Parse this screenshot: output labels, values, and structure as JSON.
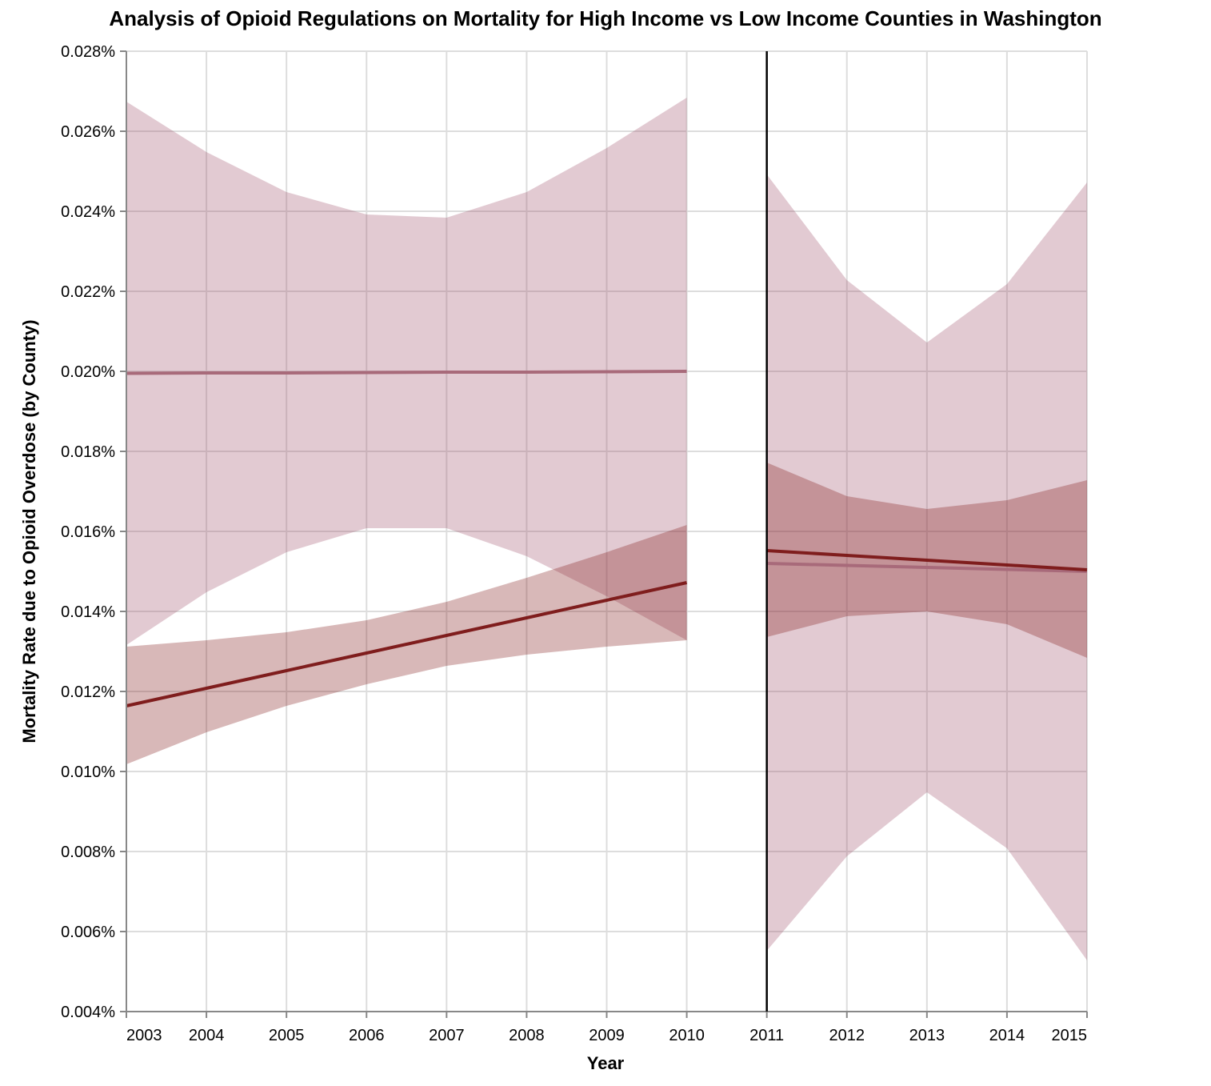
{
  "chart_data": {
    "type": "line-band",
    "title": "Analysis of Opioid Regulations on Mortality for High Income vs Low Income Counties in Washington",
    "x_label": "Year",
    "y_label": "Mortality Rate due to Opioid Overdose (by County)",
    "xlim": [
      2003,
      2015
    ],
    "xticks": [
      2003,
      2004,
      2005,
      2006,
      2007,
      2008,
      2009,
      2010,
      2011,
      2012,
      2013,
      2014,
      2015
    ],
    "ylim": [
      0.004,
      0.028
    ],
    "yticks": [
      {
        "value": 0.004,
        "label": "0.004%"
      },
      {
        "value": 0.006,
        "label": "0.006%"
      },
      {
        "value": 0.008,
        "label": "0.008%"
      },
      {
        "value": 0.01,
        "label": "0.010%"
      },
      {
        "value": 0.012,
        "label": "0.012%"
      },
      {
        "value": 0.014,
        "label": "0.014%"
      },
      {
        "value": 0.016,
        "label": "0.016%"
      },
      {
        "value": 0.018,
        "label": "0.018%"
      },
      {
        "value": 0.02,
        "label": "0.020%"
      },
      {
        "value": 0.022,
        "label": "0.022%"
      },
      {
        "value": 0.024,
        "label": "0.024%"
      },
      {
        "value": 0.026,
        "label": "0.026%"
      },
      {
        "value": 0.028,
        "label": "0.028%"
      }
    ],
    "grid": true,
    "rule_x": 2011,
    "band_opacity": 0.3,
    "series": [
      {
        "color": "#a86a7a",
        "band_color": "#a0506a",
        "x": [
          2003,
          2004,
          2005,
          2006,
          2007,
          2008,
          2009,
          2010
        ],
        "values": [
          0.01995,
          0.01996,
          0.01996,
          0.01997,
          0.01998,
          0.01998,
          0.01999,
          0.02
        ],
        "upper": [
          0.02674,
          0.02548,
          0.02448,
          0.02392,
          0.02384,
          0.02448,
          0.02558,
          0.02684
        ],
        "lower": [
          0.01316,
          0.01448,
          0.01548,
          0.01608,
          0.01608,
          0.01538,
          0.01438,
          0.01328
        ]
      },
      {
        "color": "#7f1d1d",
        "band_color": "#7d1414",
        "x": [
          2003,
          2004,
          2005,
          2006,
          2007,
          2008,
          2009,
          2010
        ],
        "values": [
          0.01164,
          0.01208,
          0.01252,
          0.01296,
          0.0134,
          0.01384,
          0.01428,
          0.01472
        ],
        "upper": [
          0.01312,
          0.01328,
          0.01348,
          0.01378,
          0.01424,
          0.01484,
          0.01548,
          0.01616
        ],
        "lower": [
          0.01018,
          0.01098,
          0.01164,
          0.01218,
          0.01264,
          0.01292,
          0.01312,
          0.01328
        ]
      },
      {
        "color": "#a86a7a",
        "band_color": "#a0506a",
        "x": [
          2011,
          2012,
          2013,
          2014,
          2015
        ],
        "values": [
          0.0152,
          0.01515,
          0.0151,
          0.01505,
          0.015
        ],
        "upper": [
          0.02492,
          0.02228,
          0.02072,
          0.02218,
          0.02472
        ],
        "lower": [
          0.00552,
          0.00788,
          0.00948,
          0.00808,
          0.00528
        ]
      },
      {
        "color": "#7f1d1d",
        "band_color": "#7d1414",
        "x": [
          2011,
          2012,
          2013,
          2014,
          2015
        ],
        "values": [
          0.01552,
          0.0154,
          0.01528,
          0.01516,
          0.01504
        ],
        "upper": [
          0.01772,
          0.01688,
          0.01656,
          0.01678,
          0.01728
        ],
        "lower": [
          0.01336,
          0.01388,
          0.014,
          0.01368,
          0.01284
        ]
      }
    ]
  }
}
